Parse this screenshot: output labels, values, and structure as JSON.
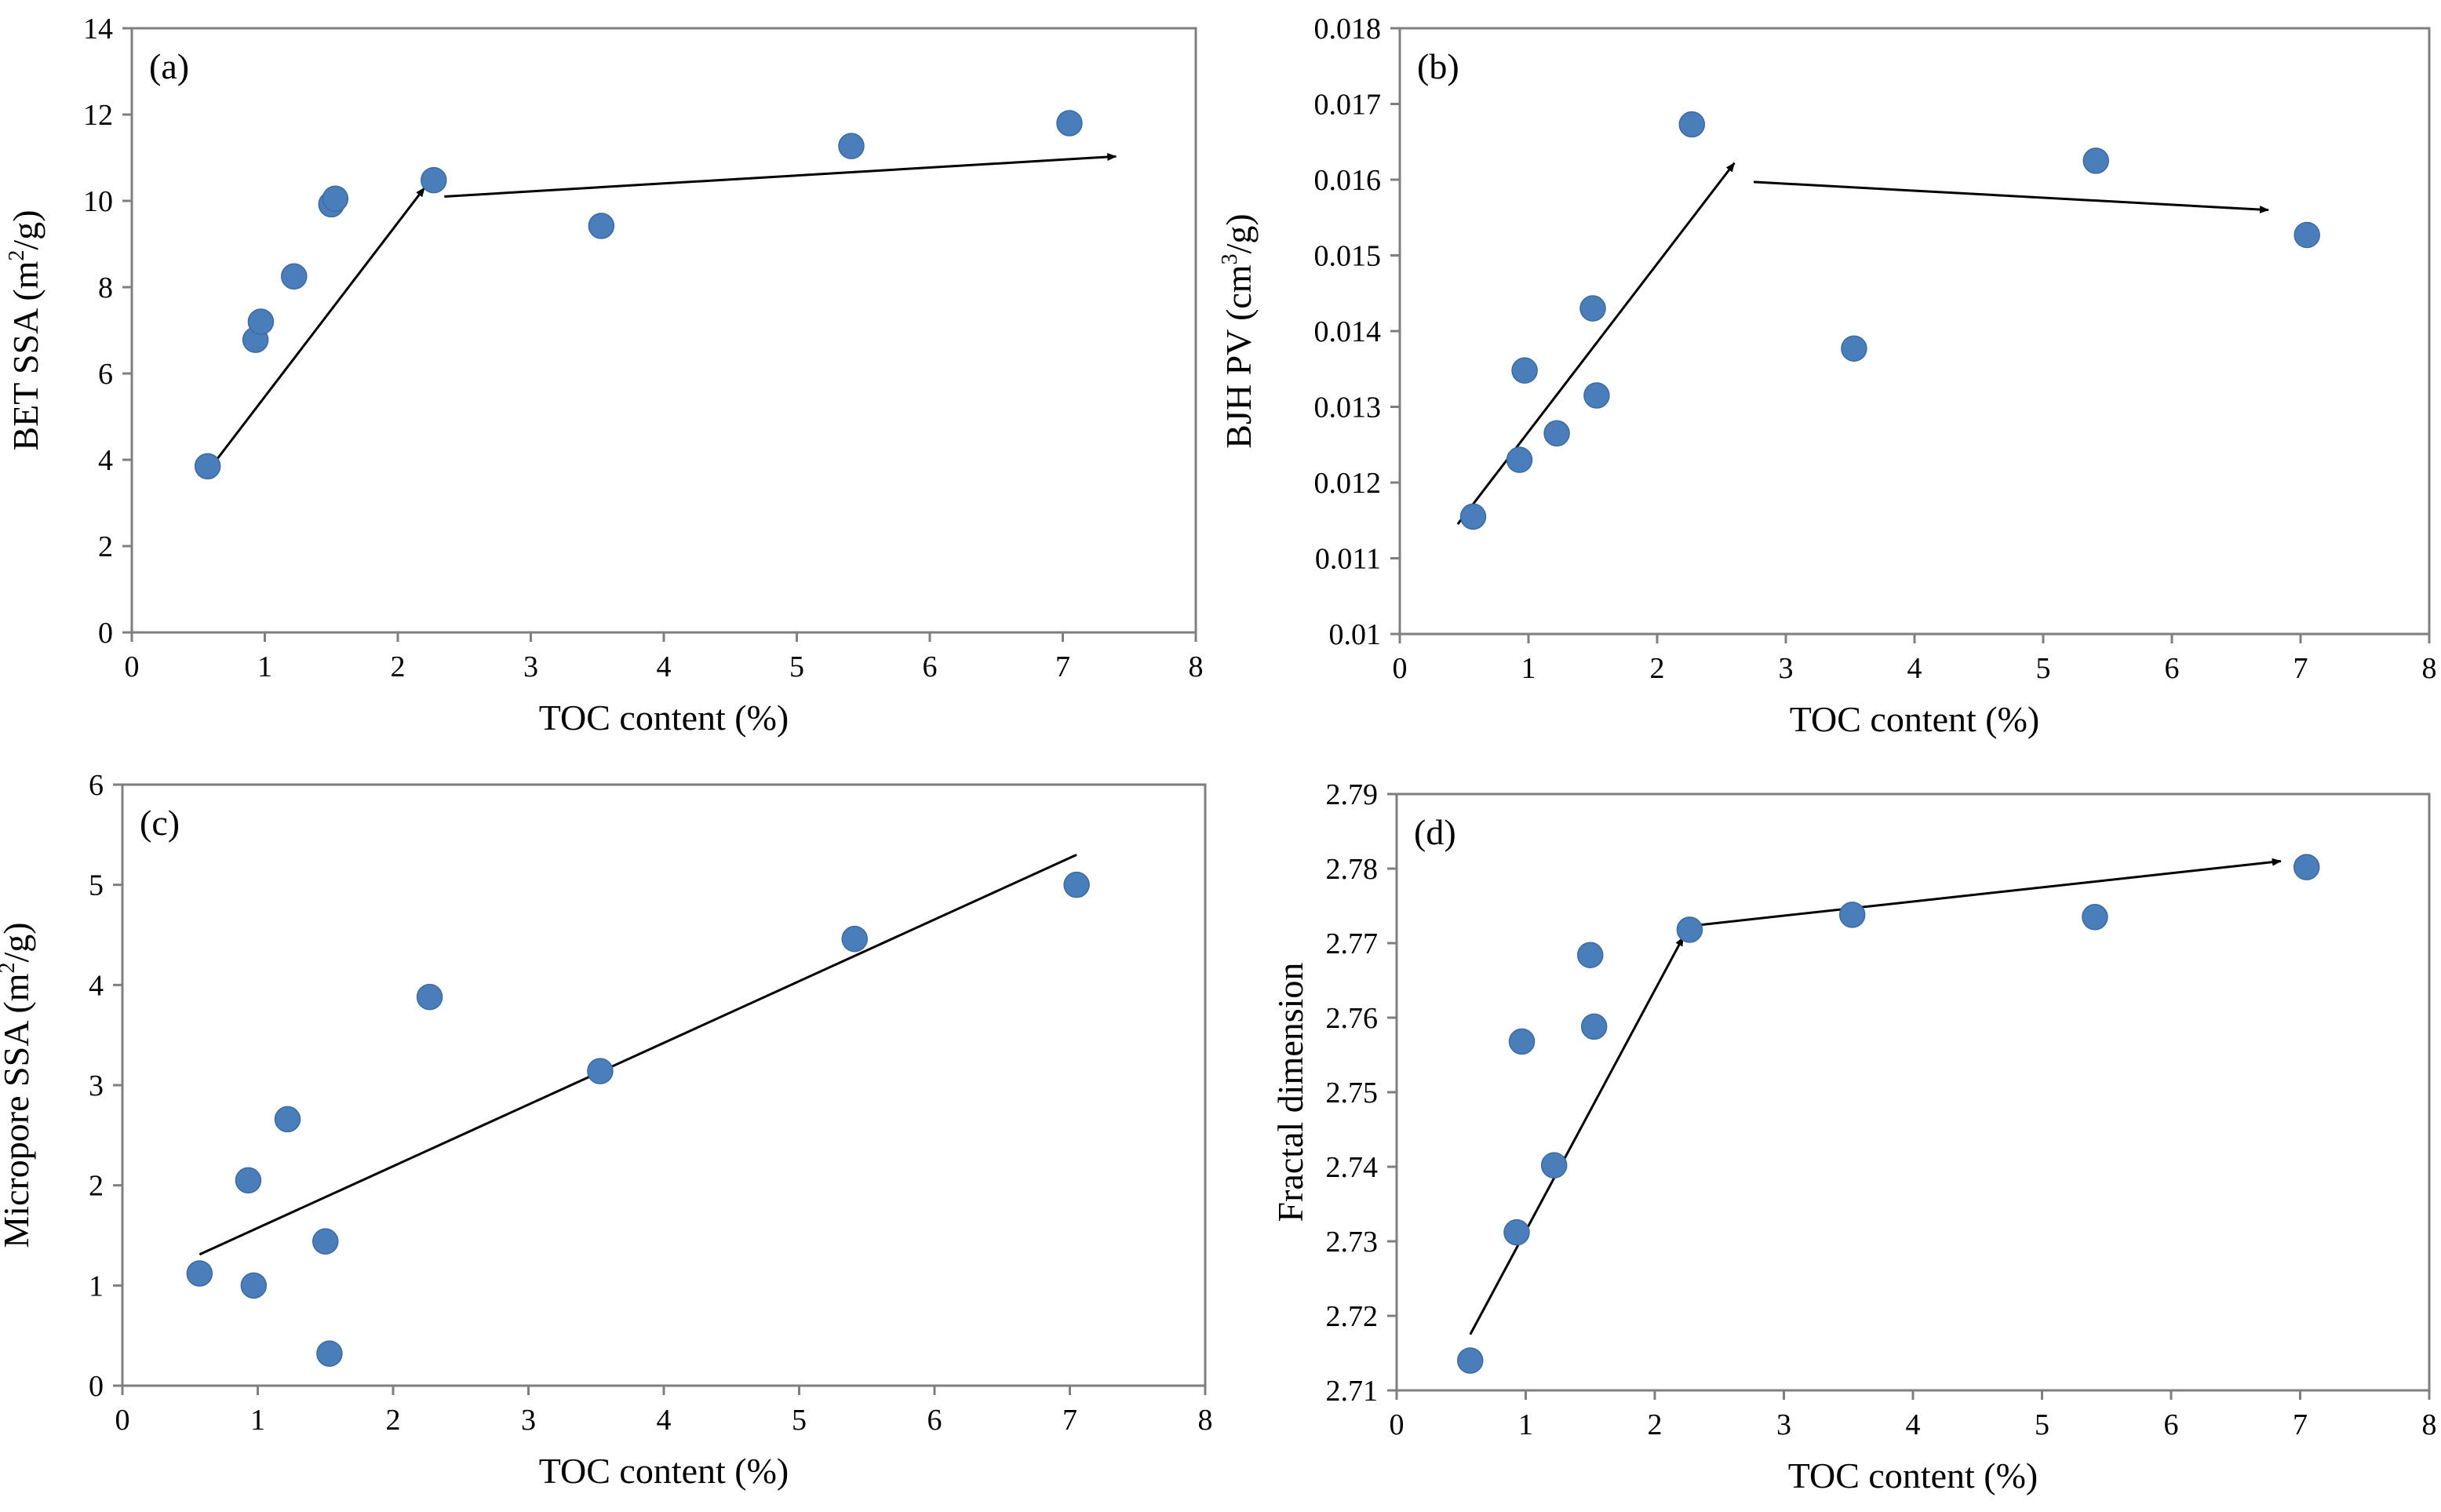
{
  "figure": {
    "marker_color": "#4a7ebb",
    "line_color": "#000000"
  },
  "chart_data": [
    {
      "type": "scatter",
      "panel_label": "(a)",
      "xlabel": "TOC content (%)",
      "ylabel_prefix": "BET SSA (m",
      "ylabel_sup": "2",
      "ylabel_suffix": "/g)",
      "xlim": [
        0,
        8
      ],
      "ylim": [
        0,
        14
      ],
      "xticks": [
        0,
        1,
        2,
        3,
        4,
        5,
        6,
        7,
        8
      ],
      "yticks": [
        0,
        2,
        4,
        6,
        8,
        10,
        12,
        14
      ],
      "ytick_decimals": 0,
      "grid": false,
      "points": [
        {
          "x": 0.57,
          "y": 3.85
        },
        {
          "x": 0.93,
          "y": 6.78
        },
        {
          "x": 0.97,
          "y": 7.2
        },
        {
          "x": 1.22,
          "y": 8.25
        },
        {
          "x": 1.5,
          "y": 9.92
        },
        {
          "x": 1.53,
          "y": 10.05
        },
        {
          "x": 2.27,
          "y": 10.48
        },
        {
          "x": 3.53,
          "y": 9.42
        },
        {
          "x": 5.41,
          "y": 11.27
        },
        {
          "x": 7.05,
          "y": 11.8
        }
      ],
      "lines": [
        {
          "from": [
            0.6,
            3.85
          ],
          "to": [
            2.2,
            10.3
          ],
          "arrow": "end"
        },
        {
          "from": [
            2.35,
            10.1
          ],
          "to": [
            7.4,
            11.03
          ],
          "arrow": "end"
        }
      ]
    },
    {
      "type": "scatter",
      "panel_label": "(b)",
      "xlabel": "TOC content (%)",
      "ylabel_prefix": "BJH PV (cm",
      "ylabel_sup": "3",
      "ylabel_suffix": "/g)",
      "xlim": [
        0,
        8
      ],
      "ylim": [
        0.01,
        0.018
      ],
      "xticks": [
        0,
        1,
        2,
        3,
        4,
        5,
        6,
        7,
        8
      ],
      "yticks": [
        0.01,
        0.011,
        0.012,
        0.013,
        0.014,
        0.015,
        0.016,
        0.017,
        0.018
      ],
      "ytick_decimals": 3,
      "ytick_labels": [
        "0.01",
        "0.011",
        "0.012",
        "0.013",
        "0.014",
        "0.015",
        "0.016",
        "0.017",
        "0.018"
      ],
      "grid": false,
      "points": [
        {
          "x": 0.57,
          "y": 0.01155
        },
        {
          "x": 0.93,
          "y": 0.0123
        },
        {
          "x": 0.97,
          "y": 0.01348
        },
        {
          "x": 1.22,
          "y": 0.01265
        },
        {
          "x": 1.5,
          "y": 0.0143
        },
        {
          "x": 1.53,
          "y": 0.01315
        },
        {
          "x": 2.27,
          "y": 0.01673
        },
        {
          "x": 3.53,
          "y": 0.01377
        },
        {
          "x": 5.41,
          "y": 0.01625
        },
        {
          "x": 7.05,
          "y": 0.01527
        }
      ],
      "lines": [
        {
          "from": [
            0.45,
            0.01145
          ],
          "to": [
            2.6,
            0.01622
          ],
          "arrow": "end"
        },
        {
          "from": [
            2.75,
            0.01597
          ],
          "to": [
            6.75,
            0.0156
          ],
          "arrow": "end"
        }
      ]
    },
    {
      "type": "scatter",
      "panel_label": "(c)",
      "xlabel": "TOC content (%)",
      "ylabel_prefix": "Micropore SSA (m",
      "ylabel_sup": "2",
      "ylabel_suffix": "/g)",
      "xlim": [
        0,
        8
      ],
      "ylim": [
        0,
        6
      ],
      "xticks": [
        0,
        1,
        2,
        3,
        4,
        5,
        6,
        7,
        8
      ],
      "yticks": [
        0,
        1,
        2,
        3,
        4,
        5,
        6
      ],
      "ytick_decimals": 0,
      "grid": false,
      "points": [
        {
          "x": 0.57,
          "y": 1.12
        },
        {
          "x": 0.93,
          "y": 2.05
        },
        {
          "x": 0.97,
          "y": 1.0
        },
        {
          "x": 1.22,
          "y": 2.66
        },
        {
          "x": 1.5,
          "y": 1.44
        },
        {
          "x": 1.53,
          "y": 0.32
        },
        {
          "x": 2.27,
          "y": 3.88
        },
        {
          "x": 3.53,
          "y": 3.14
        },
        {
          "x": 5.41,
          "y": 4.46
        },
        {
          "x": 7.05,
          "y": 5.0
        }
      ],
      "lines": [
        {
          "from": [
            0.57,
            1.31
          ],
          "to": [
            7.05,
            5.3
          ],
          "arrow": "none"
        }
      ]
    },
    {
      "type": "scatter",
      "panel_label": "(d)",
      "xlabel": "TOC content (%)",
      "ylabel_prefix": "Fractal dimension",
      "ylabel_sup": "",
      "ylabel_suffix": "",
      "xlim": [
        0,
        8
      ],
      "ylim": [
        2.71,
        2.79
      ],
      "xticks": [
        0,
        1,
        2,
        3,
        4,
        5,
        6,
        7,
        8
      ],
      "yticks": [
        2.71,
        2.72,
        2.73,
        2.74,
        2.75,
        2.76,
        2.77,
        2.78,
        2.79
      ],
      "ytick_decimals": 2,
      "ytick_labels": [
        "2.71",
        "2.72",
        "2.73",
        "2.74",
        "2.75",
        "2.76",
        "2.77",
        "2.78",
        "2.79"
      ],
      "grid": false,
      "points": [
        {
          "x": 0.57,
          "y": 2.714
        },
        {
          "x": 0.93,
          "y": 2.7312
        },
        {
          "x": 0.97,
          "y": 2.7568
        },
        {
          "x": 1.22,
          "y": 2.7402
        },
        {
          "x": 1.5,
          "y": 2.7684
        },
        {
          "x": 1.53,
          "y": 2.7588
        },
        {
          "x": 2.27,
          "y": 2.7718
        },
        {
          "x": 3.53,
          "y": 2.7738
        },
        {
          "x": 5.41,
          "y": 2.7735
        },
        {
          "x": 7.05,
          "y": 2.7802
        }
      ],
      "lines": [
        {
          "from": [
            0.57,
            2.7175
          ],
          "to": [
            2.22,
            2.7708
          ],
          "arrow": "end"
        },
        {
          "from": [
            2.22,
            2.7722
          ],
          "to": [
            6.85,
            2.781
          ],
          "arrow": "both"
        }
      ]
    }
  ]
}
